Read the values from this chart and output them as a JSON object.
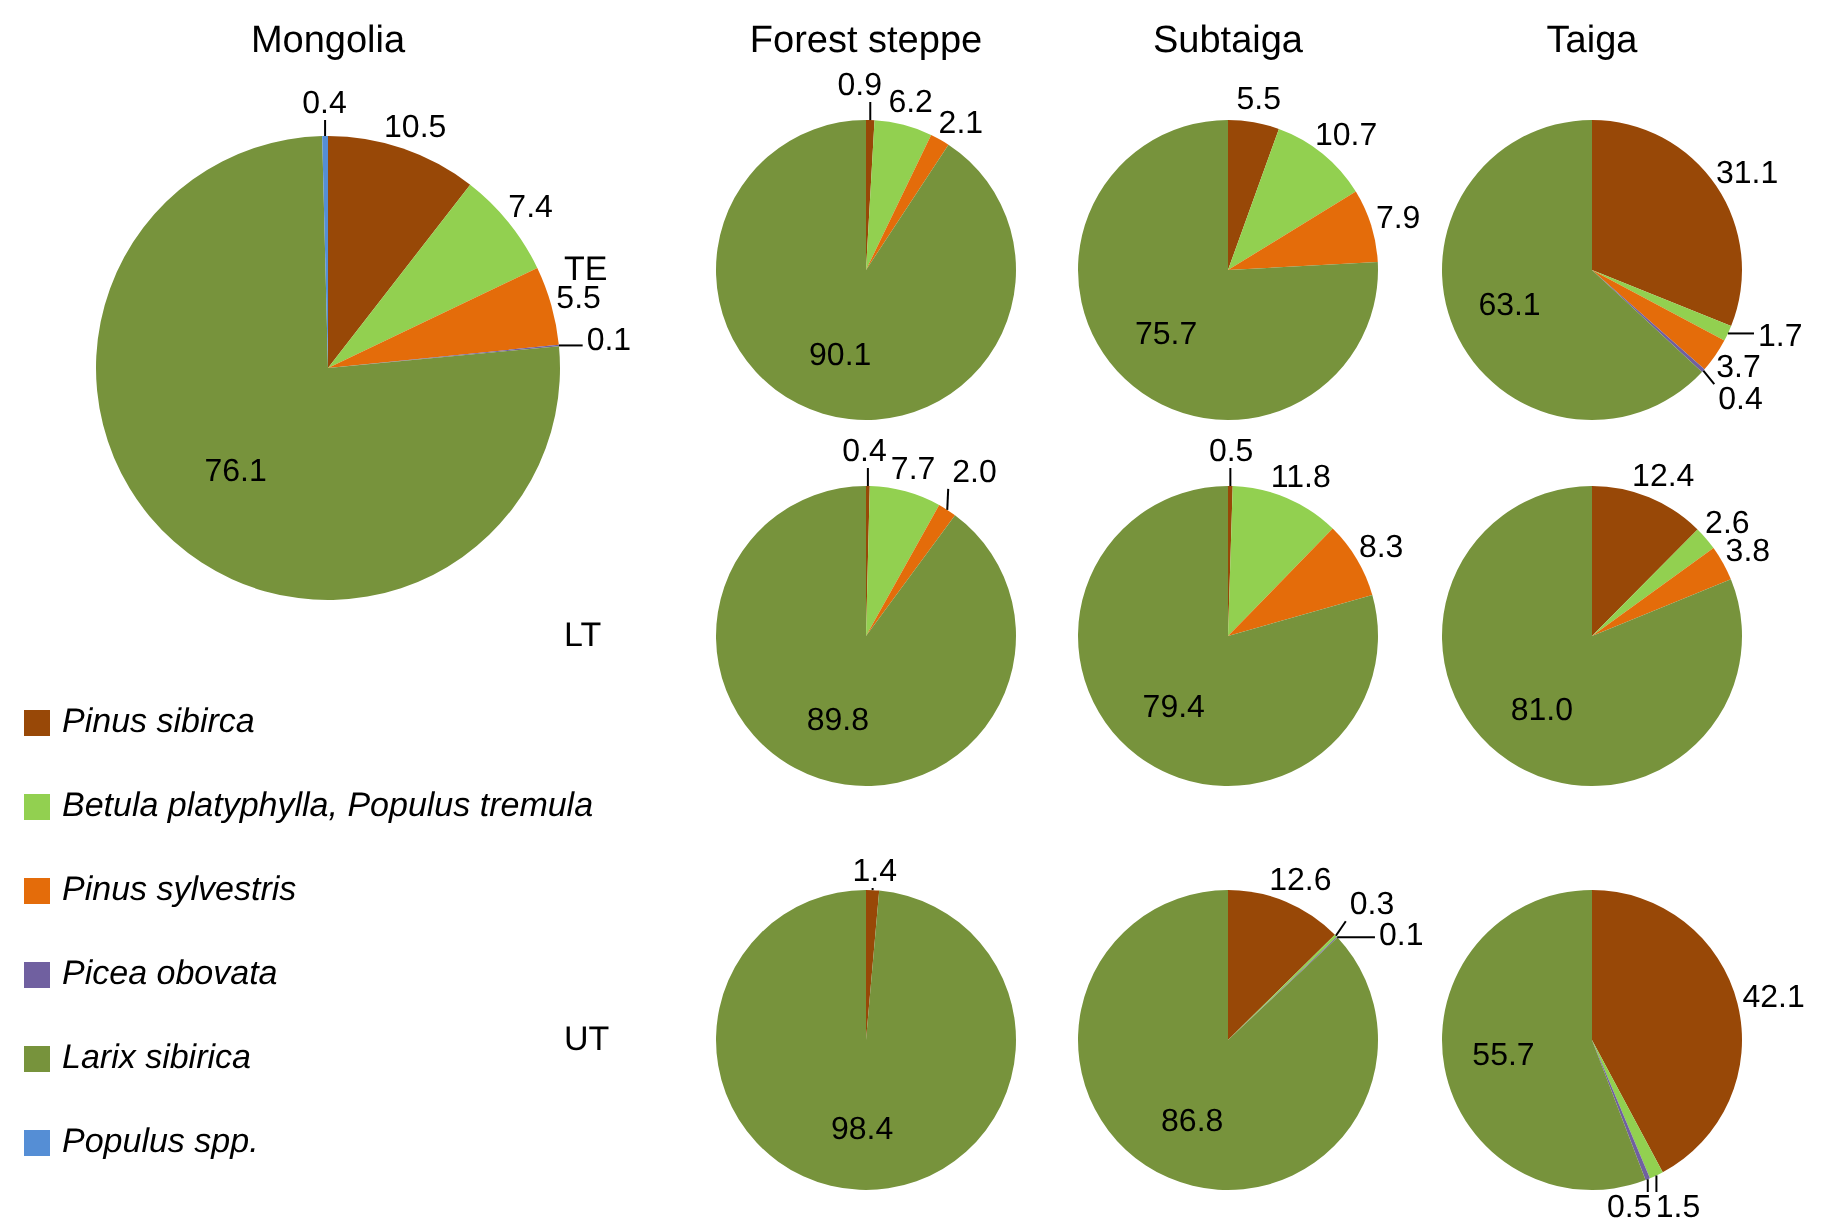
{
  "chart_data": [
    {
      "type": "pie",
      "title": "Mongolia",
      "legend": "bottom left",
      "categories": [
        "Pinus sibirca",
        "Betula platyphylla, Populus tremula",
        "Pinus sylvestris",
        "Picea obovata",
        "Larix sibirica",
        "Populus spp."
      ],
      "colors": [
        "#984807",
        "#92d050",
        "#e46c0a",
        "#7060a0",
        "#77933c",
        "#558ed5"
      ],
      "values": [
        10.5,
        7.4,
        5.5,
        0.1,
        76.1,
        0.4
      ],
      "value_labels": [
        "10.5",
        "7.4",
        "5.5",
        "0.1",
        "76.1",
        "0.4"
      ]
    },
    {
      "type": "pie",
      "title": "Forest steppe",
      "annotations": [
        "TE"
      ],
      "colors": [
        "#984807",
        "#92d050",
        "#e46c0a",
        "#7060a0",
        "#77933c",
        "#558ed5"
      ],
      "values": [
        0.9,
        6.2,
        2.1,
        null,
        90.1,
        null
      ],
      "value_labels": [
        "0.9",
        "6.2",
        "2.1",
        null,
        "90.1",
        null
      ]
    },
    {
      "type": "pie",
      "title": "Subtaiga",
      "colors": [
        "#984807",
        "#92d050",
        "#e46c0a",
        "#7060a0",
        "#77933c",
        "#558ed5"
      ],
      "values": [
        5.5,
        10.7,
        7.9,
        null,
        75.7,
        null
      ],
      "value_labels": [
        "5.5",
        "10.7",
        "7.9",
        null,
        "75.7",
        null
      ]
    },
    {
      "type": "pie",
      "title": "Taiga",
      "colors": [
        "#984807",
        "#92d050",
        "#e46c0a",
        "#7060a0",
        "#77933c",
        "#558ed5"
      ],
      "values": [
        31.1,
        1.7,
        3.7,
        0.4,
        63.1,
        null
      ],
      "value_labels": [
        "31.1",
        "1.7",
        "3.7",
        "0.4",
        "63.1",
        null
      ]
    },
    {
      "type": "pie",
      "annotations": [
        "LT"
      ],
      "colors": [
        "#984807",
        "#92d050",
        "#e46c0a",
        "#7060a0",
        "#77933c",
        "#558ed5"
      ],
      "values": [
        0.4,
        7.7,
        2.0,
        null,
        89.8,
        null
      ],
      "value_labels": [
        "0.4",
        "7.7",
        "2.0",
        null,
        "89.8",
        null
      ]
    },
    {
      "type": "pie",
      "colors": [
        "#984807",
        "#92d050",
        "#e46c0a",
        "#7060a0",
        "#77933c",
        "#558ed5"
      ],
      "values": [
        0.5,
        11.8,
        8.3,
        null,
        79.4,
        null
      ],
      "value_labels": [
        "0.5",
        "11.8",
        "8.3",
        null,
        "79.4",
        null
      ]
    },
    {
      "type": "pie",
      "colors": [
        "#984807",
        "#92d050",
        "#e46c0a",
        "#7060a0",
        "#77933c",
        "#558ed5"
      ],
      "values": [
        12.4,
        2.6,
        3.8,
        null,
        81.0,
        null
      ],
      "value_labels": [
        "12.4",
        "2.6",
        "3.8",
        null,
        "81.0",
        null
      ]
    },
    {
      "type": "pie",
      "annotations": [
        "UT"
      ],
      "colors": [
        "#984807",
        "#92d050",
        "#e46c0a",
        "#7060a0",
        "#77933c",
        "#558ed5"
      ],
      "values": [
        1.4,
        null,
        null,
        null,
        98.4,
        null
      ],
      "value_labels": [
        "1.4",
        null,
        null,
        null,
        "98.4",
        null
      ]
    },
    {
      "type": "pie",
      "colors": [
        "#984807",
        "#92d050",
        "#e46c0a",
        "#7060a0",
        "#77933c",
        "#558ed5"
      ],
      "values": [
        12.6,
        0.3,
        null,
        0.1,
        86.8,
        null
      ],
      "value_labels": [
        "12.6",
        "0.3",
        null,
        "0.1",
        "86.8",
        null
      ]
    },
    {
      "type": "pie",
      "colors": [
        "#984807",
        "#92d050",
        "#e46c0a",
        "#7060a0",
        "#77933c",
        "#558ed5"
      ],
      "values": [
        42.1,
        1.5,
        null,
        0.5,
        55.7,
        null
      ],
      "value_labels": [
        "42.1",
        "1.5",
        null,
        "0.5",
        "55.7",
        null
      ]
    }
  ]
}
